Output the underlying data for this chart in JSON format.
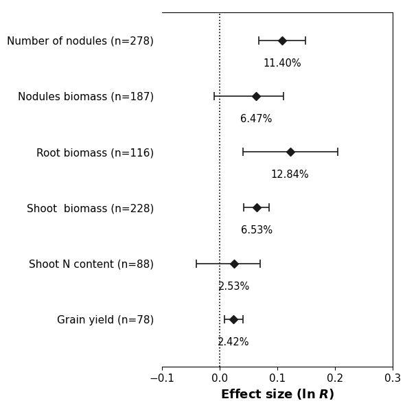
{
  "categories": [
    "Number of nodules (n=278)",
    "Nodules biomass (n=187)",
    "Root biomass (n=116)",
    "Shoot  biomass (n=228)",
    "Shoot N content (n=88)",
    "Grain yield (n=78)"
  ],
  "effect_sizes": [
    0.108,
    0.063,
    0.122,
    0.064,
    0.025,
    0.024
  ],
  "ci_low": [
    0.068,
    -0.01,
    0.04,
    0.042,
    -0.04,
    0.008
  ],
  "ci_high": [
    0.148,
    0.11,
    0.205,
    0.086,
    0.07,
    0.04
  ],
  "percentages": [
    "11.40%",
    "6.47%",
    "12.84%",
    "6.53%",
    "2.53%",
    "2.42%"
  ],
  "xlim": [
    -0.1,
    0.3
  ],
  "xticks": [
    -0.1,
    0.0,
    0.1,
    0.2,
    0.3
  ],
  "vline_x": 0.0,
  "marker_color": "#1a1a1a",
  "line_color": "#1a1a1a",
  "background_color": "#ffffff",
  "label_fontsize": 11,
  "tick_fontsize": 11,
  "pct_fontsize": 10.5,
  "xlabel_fontsize": 13
}
